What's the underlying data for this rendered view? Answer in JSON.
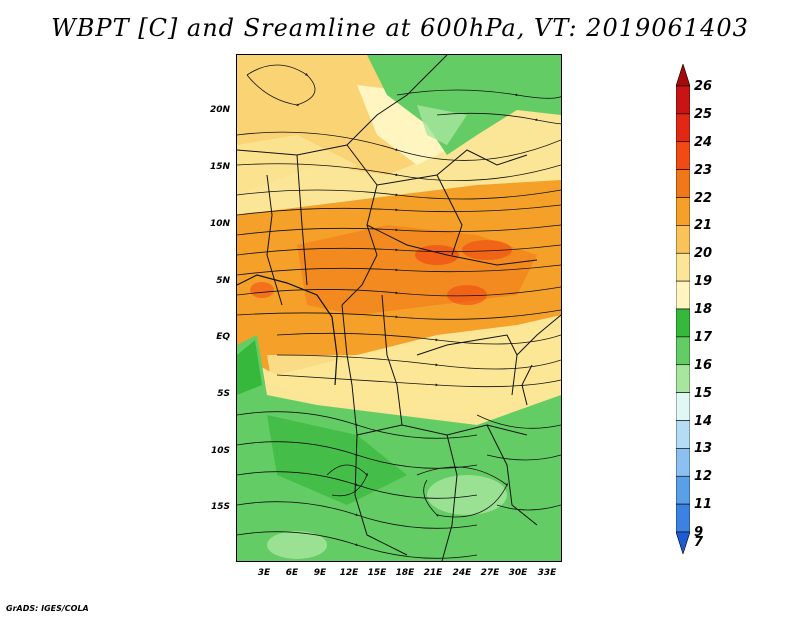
{
  "title": "WBPT [C] and Sreamline at 600hPa, VT: 2019061403",
  "footer": "GrADS: IGES/COLA",
  "map": {
    "lat_labels": [
      "20N",
      "15N",
      "10N",
      "5N",
      "EQ",
      "5S",
      "10S",
      "15S"
    ],
    "lon_labels": [
      "3E",
      "6E",
      "9E",
      "12E",
      "15E",
      "18E",
      "21E",
      "24E",
      "27E",
      "30E",
      "33E"
    ]
  },
  "colorbar": {
    "labels": [
      "26",
      "25",
      "24",
      "23",
      "22",
      "21",
      "20",
      "19",
      "18",
      "17",
      "16",
      "15",
      "14",
      "13",
      "12",
      "11",
      "9",
      "7"
    ],
    "colors": [
      "#a50a0a",
      "#c81414",
      "#e12814",
      "#f04b14",
      "#f07818",
      "#f5a028",
      "#fac35a",
      "#fae696",
      "#fff5c0",
      "#36b83c",
      "#64cc64",
      "#a8e6a0",
      "#e0f8f4",
      "#b4dcf4",
      "#8cc0f0",
      "#5aa0e8",
      "#3c82e0",
      "#1e5ad2"
    ]
  }
}
